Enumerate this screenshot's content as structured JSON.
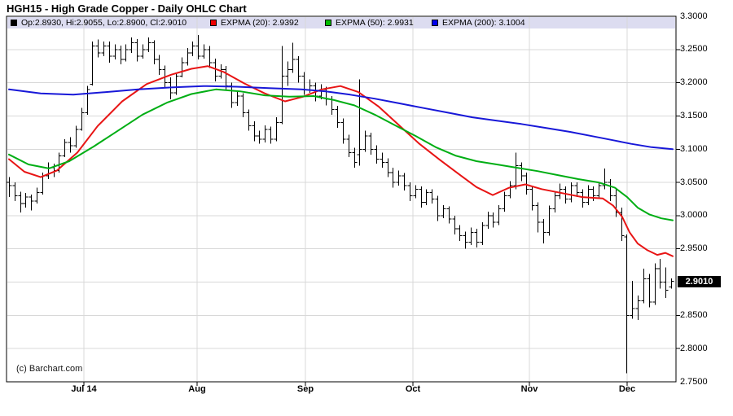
{
  "title": "HGH15 - High Grade Copper - Daily OHLC Chart",
  "watermark": "(c) Barchart.com",
  "legend": {
    "ohlc": {
      "label": "Op:2.8930, Hi:2.9055, Lo:2.8900, Cl:2.9010",
      "swatch": "#000000"
    },
    "expma20": {
      "label": "EXPMA (20): 2.9392",
      "swatch": "#ee0000"
    },
    "expma50": {
      "label": "EXPMA (50): 2.9931",
      "swatch": "#00bb00"
    },
    "expma200": {
      "label": "EXPMA (200): 3.1004",
      "swatch": "#0000ee"
    }
  },
  "last_price": {
    "label": "2.9010",
    "value": 2.901
  },
  "colors": {
    "bars": "#000000",
    "expma20": "#e81414",
    "expma50": "#00ae14",
    "expma200": "#1818d8",
    "grid": "#d8d8d8",
    "legend_strip": "#dcdcf0",
    "frame": "#000000"
  },
  "chart_data": {
    "type": "ohlc",
    "title": "HGH15 - High Grade Copper - Daily OHLC Chart",
    "y_axis": {
      "min": 2.75,
      "max": 3.3,
      "gridline_values": [
        3.25,
        3.2,
        3.15,
        3.1,
        3.05,
        3.0,
        2.95,
        2.9,
        2.85,
        2.8
      ],
      "labels": [
        {
          "v": 3.3,
          "text": "3.3000"
        },
        {
          "v": 3.25,
          "text": "3.2500"
        },
        {
          "v": 3.2,
          "text": "3.2000"
        },
        {
          "v": 3.15,
          "text": "3.1500"
        },
        {
          "v": 3.1,
          "text": "3.1000"
        },
        {
          "v": 3.05,
          "text": "3.0500"
        },
        {
          "v": 3.0,
          "text": "3.0000"
        },
        {
          "v": 2.95,
          "text": "2.9500"
        },
        {
          "v": 2.85,
          "text": "2.8500"
        },
        {
          "v": 2.8,
          "text": "2.8000"
        },
        {
          "v": 2.75,
          "text": "2.7500"
        }
      ]
    },
    "x_axis": {
      "ticks": [
        {
          "label": "Jul 14",
          "x": 103
        },
        {
          "label": "Aug",
          "x": 242
        },
        {
          "label": "Sep",
          "x": 375
        },
        {
          "label": "Oct",
          "x": 507
        },
        {
          "label": "Nov",
          "x": 650
        },
        {
          "label": "Dec",
          "x": 770
        }
      ]
    },
    "last_bar": {
      "open": 2.893,
      "high": 2.9055,
      "low": 2.89,
      "close": 2.901
    },
    "bars": [
      [
        3.05,
        3.058,
        3.028,
        3.045
      ],
      [
        3.045,
        3.05,
        3.022,
        3.03
      ],
      [
        3.03,
        3.036,
        3.005,
        3.018
      ],
      [
        3.018,
        3.034,
        3.012,
        3.028
      ],
      [
        3.028,
        3.032,
        3.008,
        3.022
      ],
      [
        3.022,
        3.042,
        3.018,
        3.035
      ],
      [
        3.035,
        3.065,
        3.032,
        3.06
      ],
      [
        3.06,
        3.08,
        3.055,
        3.072
      ],
      [
        3.072,
        3.078,
        3.058,
        3.068
      ],
      [
        3.068,
        3.095,
        3.065,
        3.09
      ],
      [
        3.09,
        3.115,
        3.088,
        3.11
      ],
      [
        3.11,
        3.118,
        3.095,
        3.105
      ],
      [
        3.105,
        3.135,
        3.102,
        3.13
      ],
      [
        3.13,
        3.162,
        3.128,
        3.155
      ],
      [
        3.155,
        3.195,
        3.152,
        3.19
      ],
      [
        3.198,
        3.262,
        3.196,
        3.255
      ],
      [
        3.255,
        3.265,
        3.238,
        3.245
      ],
      [
        3.245,
        3.262,
        3.24,
        3.255
      ],
      [
        3.255,
        3.262,
        3.23,
        3.24
      ],
      [
        3.24,
        3.258,
        3.235,
        3.25
      ],
      [
        3.25,
        3.256,
        3.228,
        3.235
      ],
      [
        3.235,
        3.258,
        3.232,
        3.25
      ],
      [
        3.25,
        3.268,
        3.245,
        3.26
      ],
      [
        3.26,
        3.266,
        3.232,
        3.24
      ],
      [
        3.24,
        3.258,
        3.236,
        3.25
      ],
      [
        3.25,
        3.268,
        3.246,
        3.26
      ],
      [
        3.26,
        3.264,
        3.228,
        3.235
      ],
      [
        3.235,
        3.242,
        3.212,
        3.22
      ],
      [
        3.22,
        3.226,
        3.192,
        3.2
      ],
      [
        3.2,
        3.208,
        3.175,
        3.185
      ],
      [
        3.185,
        3.215,
        3.182,
        3.21
      ],
      [
        3.21,
        3.238,
        3.208,
        3.23
      ],
      [
        3.23,
        3.252,
        3.226,
        3.245
      ],
      [
        3.245,
        3.262,
        3.24,
        3.255
      ],
      [
        3.255,
        3.272,
        3.235,
        3.24
      ],
      [
        3.24,
        3.258,
        3.236,
        3.25
      ],
      [
        3.25,
        3.255,
        3.222,
        3.23
      ],
      [
        3.23,
        3.236,
        3.202,
        3.21
      ],
      [
        3.21,
        3.228,
        3.206,
        3.22
      ],
      [
        3.22,
        3.225,
        3.188,
        3.195
      ],
      [
        3.195,
        3.2,
        3.162,
        3.17
      ],
      [
        3.17,
        3.188,
        3.165,
        3.18
      ],
      [
        3.18,
        3.184,
        3.148,
        3.155
      ],
      [
        3.155,
        3.16,
        3.128,
        3.135
      ],
      [
        3.135,
        3.142,
        3.112,
        3.12
      ],
      [
        3.12,
        3.128,
        3.108,
        3.115
      ],
      [
        3.115,
        3.136,
        3.11,
        3.13
      ],
      [
        3.13,
        3.134,
        3.108,
        3.115
      ],
      [
        3.115,
        3.148,
        3.112,
        3.14
      ],
      [
        3.14,
        3.255,
        3.138,
        3.21
      ],
      [
        3.21,
        3.232,
        3.195,
        3.22
      ],
      [
        3.22,
        3.26,
        3.215,
        3.235
      ],
      [
        3.235,
        3.24,
        3.2,
        3.21
      ],
      [
        3.21,
        3.216,
        3.182,
        3.19
      ],
      [
        3.19,
        3.205,
        3.185,
        3.195
      ],
      [
        3.195,
        3.2,
        3.172,
        3.18
      ],
      [
        3.18,
        3.198,
        3.175,
        3.19
      ],
      [
        3.19,
        3.194,
        3.166,
        3.175
      ],
      [
        3.175,
        3.18,
        3.152,
        3.16
      ],
      [
        3.16,
        3.165,
        3.132,
        3.14
      ],
      [
        3.14,
        3.146,
        3.108,
        3.115
      ],
      [
        3.115,
        3.122,
        3.088,
        3.095
      ],
      [
        3.095,
        3.102,
        3.072,
        3.08
      ],
      [
        3.092,
        3.205,
        3.075,
        3.1
      ],
      [
        3.1,
        3.128,
        3.096,
        3.12
      ],
      [
        3.12,
        3.125,
        3.092,
        3.1
      ],
      [
        3.1,
        3.106,
        3.078,
        3.085
      ],
      [
        3.085,
        3.095,
        3.072,
        3.08
      ],
      [
        3.08,
        3.086,
        3.058,
        3.065
      ],
      [
        3.065,
        3.072,
        3.042,
        3.05
      ],
      [
        3.05,
        3.068,
        3.045,
        3.06
      ],
      [
        3.06,
        3.064,
        3.038,
        3.045
      ],
      [
        3.045,
        3.05,
        3.022,
        3.03
      ],
      [
        3.03,
        3.046,
        3.026,
        3.04
      ],
      [
        3.04,
        3.044,
        3.012,
        3.02
      ],
      [
        3.02,
        3.04,
        3.016,
        3.035
      ],
      [
        3.035,
        3.04,
        3.018,
        3.025
      ],
      [
        3.025,
        3.03,
        2.992,
        3.0
      ],
      [
        3.0,
        3.016,
        2.996,
        3.01
      ],
      [
        3.01,
        3.014,
        2.988,
        2.995
      ],
      [
        2.995,
        3.0,
        2.972,
        2.98
      ],
      [
        2.98,
        2.986,
        2.962,
        2.97
      ],
      [
        2.97,
        2.976,
        2.95,
        2.96
      ],
      [
        2.96,
        2.982,
        2.956,
        2.975
      ],
      [
        2.975,
        2.98,
        2.952,
        2.96
      ],
      [
        2.96,
        2.99,
        2.956,
        2.985
      ],
      [
        2.985,
        3.006,
        2.98,
        3.0
      ],
      [
        3.0,
        3.005,
        2.982,
        2.99
      ],
      [
        2.99,
        3.016,
        2.986,
        3.01
      ],
      [
        3.01,
        3.036,
        3.006,
        3.03
      ],
      [
        3.03,
        3.052,
        3.026,
        3.045
      ],
      [
        3.045,
        3.095,
        3.04,
        3.075
      ],
      [
        3.075,
        3.08,
        3.052,
        3.06
      ],
      [
        3.06,
        3.065,
        3.032,
        3.04
      ],
      [
        3.04,
        3.045,
        3.008,
        3.015
      ],
      [
        3.015,
        3.02,
        2.975,
        2.99
      ],
      [
        2.99,
        2.995,
        2.958,
        2.975
      ],
      [
        2.975,
        3.015,
        2.97,
        3.01
      ],
      [
        3.01,
        3.036,
        3.005,
        3.03
      ],
      [
        3.03,
        3.048,
        3.025,
        3.04
      ],
      [
        3.04,
        3.044,
        3.018,
        3.025
      ],
      [
        3.025,
        3.05,
        3.02,
        3.045
      ],
      [
        3.045,
        3.05,
        3.028,
        3.035
      ],
      [
        3.035,
        3.04,
        3.012,
        3.02
      ],
      [
        3.02,
        3.046,
        3.016,
        3.04
      ],
      [
        3.04,
        3.044,
        3.022,
        3.03
      ],
      [
        3.03,
        3.05,
        3.026,
        3.045
      ],
      [
        3.045,
        3.071,
        3.04,
        3.05
      ],
      [
        3.05,
        3.055,
        3.022,
        3.03
      ],
      [
        3.03,
        3.041,
        2.998,
        3.005
      ],
      [
        3.005,
        3.012,
        2.962,
        2.97
      ],
      [
        2.968,
        2.972,
        2.763,
        2.85
      ],
      [
        2.85,
        2.902,
        2.845,
        2.86
      ],
      [
        2.86,
        2.88,
        2.843,
        2.872
      ],
      [
        2.872,
        2.92,
        2.868,
        2.905
      ],
      [
        2.905,
        2.912,
        2.862,
        2.87
      ],
      [
        2.87,
        2.928,
        2.866,
        2.92
      ],
      [
        2.92,
        2.935,
        2.89,
        2.9
      ],
      [
        2.9,
        2.922,
        2.876,
        2.888
      ],
      [
        2.893,
        2.9055,
        2.89,
        2.901
      ]
    ],
    "series": [
      {
        "name": "EXPMA (20)",
        "color": "#e81414",
        "points": [
          [
            11,
            3.085
          ],
          [
            30,
            3.066
          ],
          [
            50,
            3.058
          ],
          [
            70,
            3.068
          ],
          [
            95,
            3.095
          ],
          [
            120,
            3.135
          ],
          [
            150,
            3.172
          ],
          [
            180,
            3.198
          ],
          [
            210,
            3.212
          ],
          [
            235,
            3.221
          ],
          [
            255,
            3.225
          ],
          [
            275,
            3.216
          ],
          [
            300,
            3.199
          ],
          [
            325,
            3.184
          ],
          [
            350,
            3.172
          ],
          [
            372,
            3.179
          ],
          [
            395,
            3.19
          ],
          [
            418,
            3.195
          ],
          [
            440,
            3.186
          ],
          [
            465,
            3.164
          ],
          [
            490,
            3.136
          ],
          [
            515,
            3.108
          ],
          [
            540,
            3.084
          ],
          [
            565,
            3.061
          ],
          [
            585,
            3.043
          ],
          [
            605,
            3.031
          ],
          [
            625,
            3.042
          ],
          [
            645,
            3.047
          ],
          [
            665,
            3.04
          ],
          [
            690,
            3.034
          ],
          [
            715,
            3.028
          ],
          [
            740,
            3.026
          ],
          [
            753,
            3.015
          ],
          [
            764,
            2.998
          ],
          [
            773,
            2.975
          ],
          [
            783,
            2.958
          ],
          [
            795,
            2.948
          ],
          [
            807,
            2.941
          ],
          [
            817,
            2.944
          ],
          [
            826,
            2.939
          ]
        ]
      },
      {
        "name": "EXPMA (50)",
        "color": "#00ae14",
        "points": [
          [
            11,
            3.092
          ],
          [
            35,
            3.077
          ],
          [
            60,
            3.071
          ],
          [
            85,
            3.082
          ],
          [
            115,
            3.104
          ],
          [
            145,
            3.128
          ],
          [
            175,
            3.152
          ],
          [
            205,
            3.17
          ],
          [
            235,
            3.183
          ],
          [
            265,
            3.19
          ],
          [
            295,
            3.187
          ],
          [
            325,
            3.181
          ],
          [
            355,
            3.179
          ],
          [
            385,
            3.18
          ],
          [
            410,
            3.174
          ],
          [
            435,
            3.166
          ],
          [
            460,
            3.152
          ],
          [
            485,
            3.136
          ],
          [
            510,
            3.12
          ],
          [
            535,
            3.103
          ],
          [
            560,
            3.09
          ],
          [
            585,
            3.082
          ],
          [
            610,
            3.077
          ],
          [
            635,
            3.072
          ],
          [
            660,
            3.067
          ],
          [
            685,
            3.061
          ],
          [
            710,
            3.055
          ],
          [
            735,
            3.05
          ],
          [
            755,
            3.042
          ],
          [
            770,
            3.028
          ],
          [
            783,
            3.012
          ],
          [
            797,
            3.002
          ],
          [
            812,
            2.996
          ],
          [
            826,
            2.993
          ]
        ]
      },
      {
        "name": "EXPMA (200)",
        "color": "#1818d8",
        "points": [
          [
            11,
            3.19
          ],
          [
            50,
            3.184
          ],
          [
            90,
            3.182
          ],
          [
            130,
            3.186
          ],
          [
            170,
            3.19
          ],
          [
            210,
            3.193
          ],
          [
            250,
            3.195
          ],
          [
            290,
            3.194
          ],
          [
            330,
            3.192
          ],
          [
            370,
            3.19
          ],
          [
            400,
            3.187
          ],
          [
            430,
            3.182
          ],
          [
            460,
            3.176
          ],
          [
            490,
            3.169
          ],
          [
            520,
            3.162
          ],
          [
            550,
            3.155
          ],
          [
            580,
            3.148
          ],
          [
            610,
            3.143
          ],
          [
            640,
            3.138
          ],
          [
            670,
            3.132
          ],
          [
            700,
            3.126
          ],
          [
            730,
            3.119
          ],
          [
            755,
            3.113
          ],
          [
            775,
            3.108
          ],
          [
            800,
            3.103
          ],
          [
            826,
            3.1
          ]
        ]
      }
    ]
  }
}
